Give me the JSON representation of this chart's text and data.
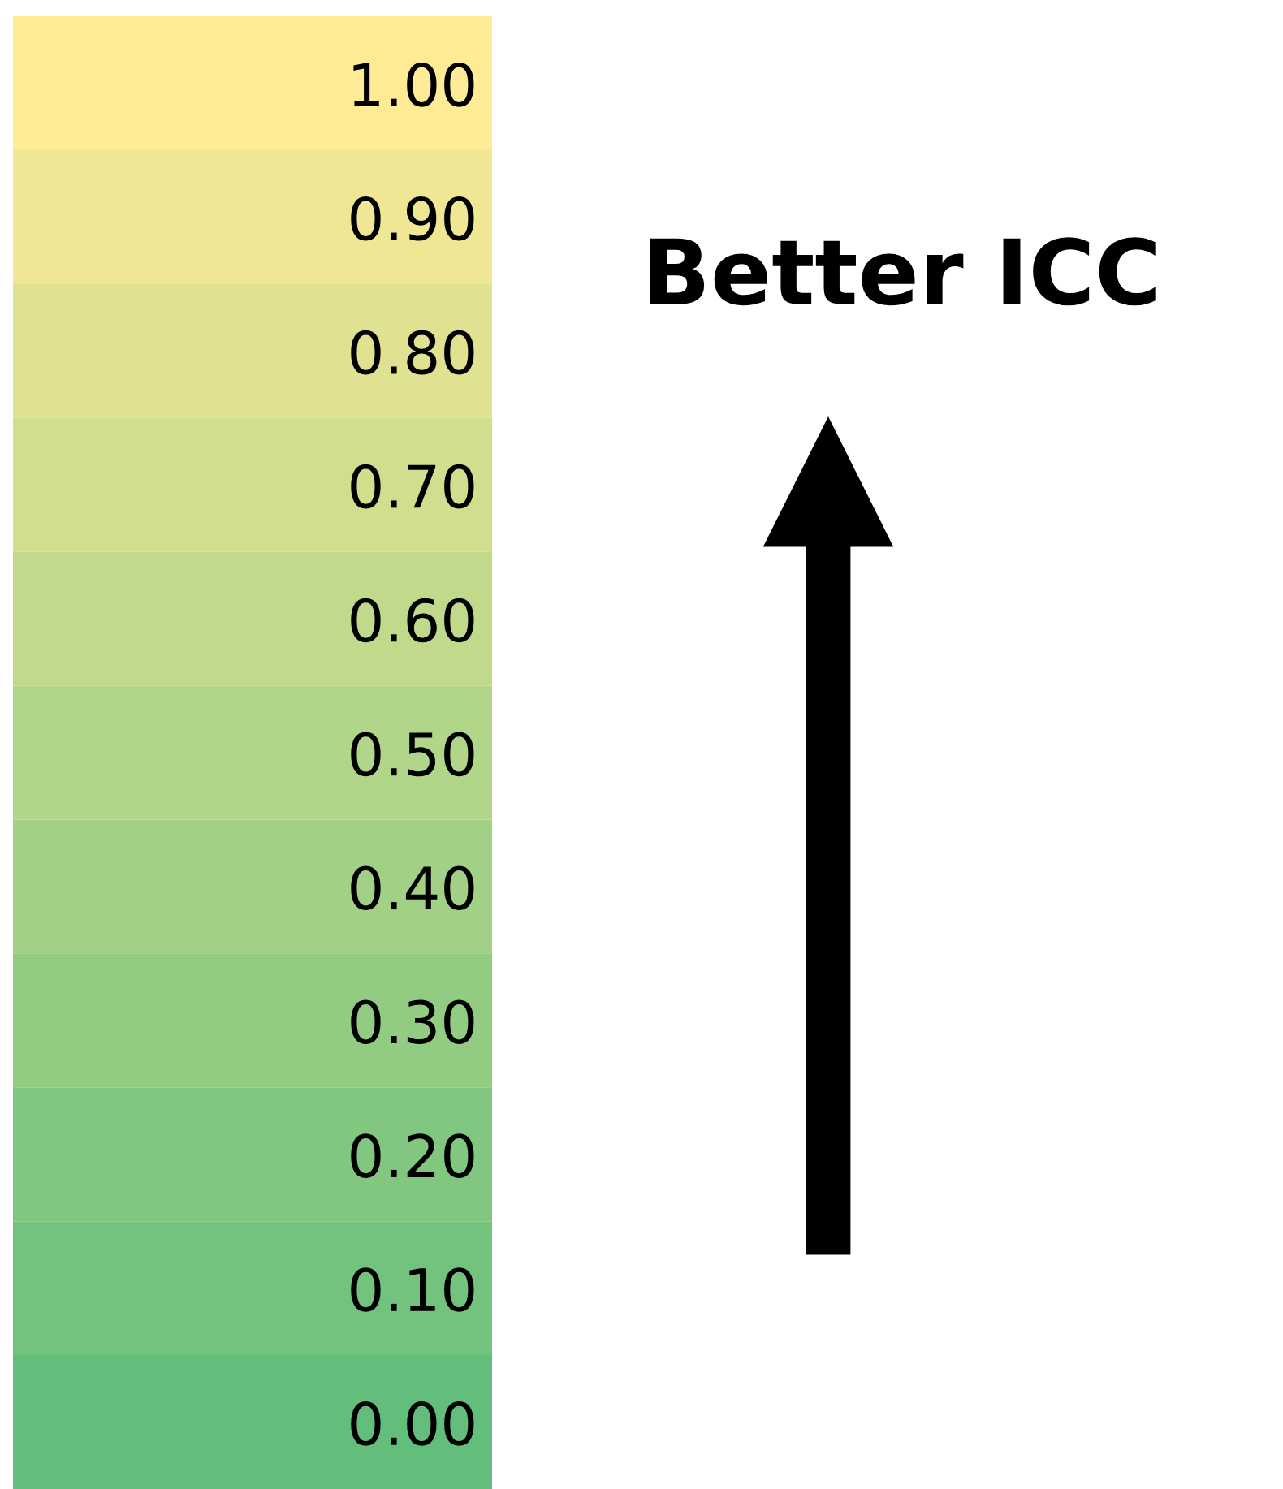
{
  "chart_data": {
    "type": "heatmap",
    "categories": [
      null
    ],
    "y_categories": [
      null,
      null,
      null,
      null,
      null,
      null,
      null,
      null,
      null,
      null,
      null
    ],
    "cells": [
      [
        1.0
      ],
      [
        0.9
      ],
      [
        0.8
      ],
      [
        0.7
      ],
      [
        0.6
      ],
      [
        0.5
      ],
      [
        0.4
      ],
      [
        0.3
      ],
      [
        0.2
      ],
      [
        0.1
      ],
      [
        0.0
      ]
    ],
    "cell_labels": [
      [
        "1.00"
      ],
      [
        "0.90"
      ],
      [
        "0.80"
      ],
      [
        "0.70"
      ],
      [
        "0.60"
      ],
      [
        "0.50"
      ],
      [
        "0.40"
      ],
      [
        "0.30"
      ],
      [
        "0.20"
      ],
      [
        "0.10"
      ],
      [
        "0.00"
      ]
    ],
    "colors": [
      "#ffeb96",
      "#efe793",
      "#e0e291",
      "#d0de8e",
      "#c1d98b",
      "#b1d589",
      "#a2d086",
      "#92cc83",
      "#82c780",
      "#73c37e",
      "#63be7b"
    ],
    "annotations": [
      "Better ICC"
    ],
    "grid": false
  }
}
